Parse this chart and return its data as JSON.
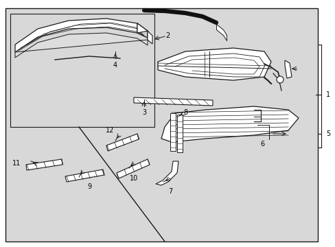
{
  "bg_color": "#ffffff",
  "outer_bg": "#d8d8d8",
  "inner_bg": "#d8d8d8",
  "line_color": "#1a1a1a",
  "white": "#ffffff",
  "part_line_color": "#333333"
}
